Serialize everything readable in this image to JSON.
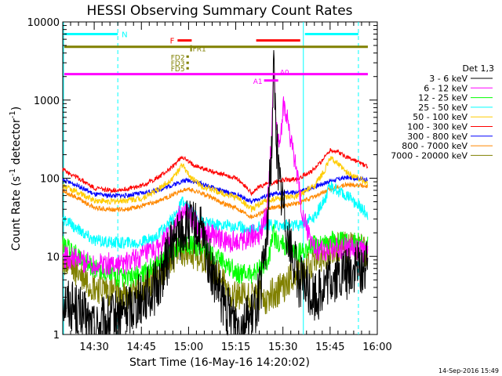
{
  "chart_data": {
    "type": "line",
    "title": "HESSI Observing Summary Count Rates",
    "xlabel": "Start Time (16-May-16 14:20:02)",
    "ylabel_main": "Count Rate (s",
    "ylabel_sup1": "-1",
    "ylabel_mid": " detector",
    "ylabel_sup2": "-1",
    "ylabel_end": ")",
    "detectors_label": "Det 1,3",
    "timestamp": "14-Sep-2016 15:49",
    "x_minutes_range": [
      0,
      100
    ],
    "ylim": [
      1,
      10000
    ],
    "y_scale": "log",
    "x_ticks": [
      {
        "m": 10,
        "label": "14:30"
      },
      {
        "m": 25,
        "label": "14:45"
      },
      {
        "m": 40,
        "label": "15:00"
      },
      {
        "m": 55,
        "label": "15:15"
      },
      {
        "m": 70,
        "label": "15:30"
      },
      {
        "m": 85,
        "label": "15:45"
      },
      {
        "m": 100,
        "label": "16:00"
      }
    ],
    "y_ticks": [
      {
        "v": 1,
        "label": "1"
      },
      {
        "v": 10,
        "label": "10"
      },
      {
        "v": 100,
        "label": "100"
      },
      {
        "v": 1000,
        "label": "1000"
      },
      {
        "v": 10000,
        "label": "10000"
      }
    ],
    "series": [
      {
        "name": "3 - 6 keV",
        "color": "#000000",
        "points": [
          [
            0,
            3
          ],
          [
            5,
            2
          ],
          [
            10,
            1.2
          ],
          [
            15,
            1.5
          ],
          [
            20,
            2
          ],
          [
            25,
            3
          ],
          [
            30,
            4
          ],
          [
            35,
            15
          ],
          [
            38,
            20
          ],
          [
            40,
            25
          ],
          [
            44,
            20
          ],
          [
            48,
            5
          ],
          [
            52,
            2
          ],
          [
            56,
            1.5
          ],
          [
            60,
            1.5
          ],
          [
            63,
            4
          ],
          [
            65,
            20
          ],
          [
            66.5,
            300
          ],
          [
            67,
            3000
          ],
          [
            68,
            300
          ],
          [
            69,
            80
          ],
          [
            70,
            50
          ],
          [
            72,
            15
          ],
          [
            75,
            5
          ],
          [
            80,
            3
          ],
          [
            85,
            5
          ],
          [
            90,
            6
          ],
          [
            94,
            7
          ],
          [
            97,
            7
          ]
        ]
      },
      {
        "name": "6 - 12 keV",
        "color": "#ff00ff",
        "points": [
          [
            0,
            10
          ],
          [
            5,
            9
          ],
          [
            10,
            8
          ],
          [
            15,
            8
          ],
          [
            20,
            8
          ],
          [
            25,
            10
          ],
          [
            30,
            12
          ],
          [
            35,
            20
          ],
          [
            38,
            40
          ],
          [
            40,
            35
          ],
          [
            44,
            22
          ],
          [
            48,
            18
          ],
          [
            52,
            15
          ],
          [
            56,
            16
          ],
          [
            60,
            18
          ],
          [
            63,
            20
          ],
          [
            65,
            40
          ],
          [
            66.5,
            400
          ],
          [
            67,
            2500
          ],
          [
            68,
            500
          ],
          [
            69,
            200
          ],
          [
            70,
            900
          ],
          [
            71,
            700
          ],
          [
            72,
            400
          ],
          [
            74,
            150
          ],
          [
            76,
            40
          ],
          [
            78,
            20
          ],
          [
            80,
            12
          ],
          [
            85,
            12
          ],
          [
            90,
            13
          ],
          [
            94,
            12
          ],
          [
            97,
            11
          ]
        ]
      },
      {
        "name": "12 - 25 keV",
        "color": "#00ff00",
        "points": [
          [
            0,
            14
          ],
          [
            5,
            10
          ],
          [
            10,
            7
          ],
          [
            15,
            6
          ],
          [
            20,
            5
          ],
          [
            25,
            6
          ],
          [
            30,
            8
          ],
          [
            35,
            12
          ],
          [
            38,
            14
          ],
          [
            40,
            14
          ],
          [
            44,
            13
          ],
          [
            48,
            10
          ],
          [
            52,
            8
          ],
          [
            56,
            6
          ],
          [
            60,
            6
          ],
          [
            63,
            7
          ],
          [
            65,
            8
          ],
          [
            66.5,
            15
          ],
          [
            67,
            20
          ],
          [
            68,
            15
          ],
          [
            70,
            14
          ],
          [
            72,
            12
          ],
          [
            75,
            11
          ],
          [
            80,
            14
          ],
          [
            85,
            16
          ],
          [
            90,
            15
          ],
          [
            94,
            15
          ],
          [
            97,
            14
          ]
        ]
      },
      {
        "name": "25 - 50 keV",
        "color": "#00ffff",
        "points": [
          [
            0,
            30
          ],
          [
            5,
            22
          ],
          [
            10,
            16
          ],
          [
            15,
            15
          ],
          [
            20,
            15
          ],
          [
            25,
            15
          ],
          [
            30,
            18
          ],
          [
            35,
            30
          ],
          [
            38,
            50
          ],
          [
            40,
            40
          ],
          [
            44,
            28
          ],
          [
            48,
            26
          ],
          [
            52,
            25
          ],
          [
            56,
            24
          ],
          [
            60,
            22
          ],
          [
            63,
            24
          ],
          [
            65,
            25
          ],
          [
            68,
            25
          ],
          [
            70,
            25
          ],
          [
            72,
            25
          ],
          [
            75,
            25
          ],
          [
            80,
            32
          ],
          [
            83,
            50
          ],
          [
            85,
            80
          ],
          [
            87,
            70
          ],
          [
            90,
            60
          ],
          [
            94,
            45
          ],
          [
            97,
            35
          ]
        ]
      },
      {
        "name": "50 - 100 keV",
        "color": "#ffcc00",
        "points": [
          [
            0,
            80
          ],
          [
            5,
            65
          ],
          [
            10,
            52
          ],
          [
            15,
            50
          ],
          [
            20,
            52
          ],
          [
            25,
            55
          ],
          [
            30,
            70
          ],
          [
            35,
            100
          ],
          [
            38,
            150
          ],
          [
            40,
            110
          ],
          [
            44,
            80
          ],
          [
            48,
            70
          ],
          [
            52,
            62
          ],
          [
            56,
            55
          ],
          [
            60,
            40
          ],
          [
            63,
            48
          ],
          [
            65,
            52
          ],
          [
            68,
            55
          ],
          [
            70,
            55
          ],
          [
            72,
            56
          ],
          [
            75,
            60
          ],
          [
            80,
            80
          ],
          [
            83,
            120
          ],
          [
            85,
            180
          ],
          [
            87,
            160
          ],
          [
            90,
            120
          ],
          [
            94,
            100
          ],
          [
            97,
            85
          ]
        ]
      },
      {
        "name": "100 - 300 keV",
        "color": "#ff0000",
        "points": [
          [
            0,
            130
          ],
          [
            5,
            100
          ],
          [
            10,
            75
          ],
          [
            15,
            70
          ],
          [
            20,
            72
          ],
          [
            25,
            80
          ],
          [
            30,
            100
          ],
          [
            35,
            140
          ],
          [
            38,
            190
          ],
          [
            40,
            160
          ],
          [
            44,
            135
          ],
          [
            48,
            120
          ],
          [
            52,
            110
          ],
          [
            56,
            95
          ],
          [
            60,
            65
          ],
          [
            63,
            80
          ],
          [
            65,
            85
          ],
          [
            68,
            90
          ],
          [
            70,
            95
          ],
          [
            72,
            95
          ],
          [
            75,
            100
          ],
          [
            80,
            130
          ],
          [
            83,
            180
          ],
          [
            85,
            230
          ],
          [
            87,
            220
          ],
          [
            90,
            190
          ],
          [
            94,
            160
          ],
          [
            97,
            140
          ]
        ]
      },
      {
        "name": "300 - 800 keV",
        "color": "#0000ff",
        "points": [
          [
            0,
            95
          ],
          [
            5,
            80
          ],
          [
            10,
            62
          ],
          [
            15,
            60
          ],
          [
            20,
            60
          ],
          [
            25,
            64
          ],
          [
            30,
            70
          ],
          [
            35,
            82
          ],
          [
            38,
            92
          ],
          [
            40,
            95
          ],
          [
            44,
            85
          ],
          [
            48,
            75
          ],
          [
            52,
            66
          ],
          [
            56,
            60
          ],
          [
            60,
            50
          ],
          [
            63,
            56
          ],
          [
            65,
            60
          ],
          [
            68,
            63
          ],
          [
            70,
            64
          ],
          [
            72,
            65
          ],
          [
            75,
            66
          ],
          [
            80,
            78
          ],
          [
            85,
            92
          ],
          [
            90,
            102
          ],
          [
            94,
            100
          ],
          [
            97,
            95
          ]
        ]
      },
      {
        "name": "800 - 7000 keV",
        "color": "#ff8800",
        "points": [
          [
            0,
            70
          ],
          [
            5,
            55
          ],
          [
            10,
            42
          ],
          [
            15,
            40
          ],
          [
            20,
            40
          ],
          [
            25,
            44
          ],
          [
            30,
            50
          ],
          [
            35,
            62
          ],
          [
            38,
            70
          ],
          [
            40,
            72
          ],
          [
            44,
            65
          ],
          [
            48,
            55
          ],
          [
            52,
            46
          ],
          [
            56,
            40
          ],
          [
            60,
            32
          ],
          [
            63,
            36
          ],
          [
            65,
            40
          ],
          [
            68,
            43
          ],
          [
            70,
            44
          ],
          [
            72,
            46
          ],
          [
            75,
            48
          ],
          [
            80,
            58
          ],
          [
            85,
            72
          ],
          [
            90,
            82
          ],
          [
            94,
            82
          ],
          [
            97,
            78
          ]
        ]
      },
      {
        "name": "7000 - 20000 keV",
        "color": "#808000",
        "points": [
          [
            0,
            9
          ],
          [
            5,
            6
          ],
          [
            10,
            4
          ],
          [
            15,
            3.5
          ],
          [
            20,
            3
          ],
          [
            25,
            4
          ],
          [
            30,
            6
          ],
          [
            35,
            10
          ],
          [
            38,
            12
          ],
          [
            40,
            12
          ],
          [
            44,
            10
          ],
          [
            48,
            7
          ],
          [
            52,
            4
          ],
          [
            56,
            3
          ],
          [
            60,
            3
          ],
          [
            63,
            3
          ],
          [
            65,
            3
          ],
          [
            67,
            3.5
          ],
          [
            70,
            4
          ],
          [
            72,
            5
          ],
          [
            75,
            6
          ],
          [
            80,
            9
          ],
          [
            85,
            12
          ],
          [
            90,
            13
          ],
          [
            94,
            13
          ],
          [
            97,
            12
          ]
        ]
      }
    ],
    "annotations": {
      "night_label": "N",
      "flare_label": "F",
      "fr_label": "FR1",
      "fd_labels": [
        "FD2",
        "FD3",
        "FD5"
      ],
      "attenuator_labels": [
        "A1",
        "A0"
      ],
      "night_intervals": [
        [
          0,
          17.5
        ],
        [
          76.5,
          94
        ]
      ],
      "flare_intervals": [
        [
          36.5,
          41
        ],
        [
          61.5,
          75.5
        ]
      ],
      "saa_or_data_bands": [
        [
          0,
          97
        ]
      ],
      "attenuator_intervals": [
        [
          64,
          68.5
        ]
      ],
      "vertical_lines_solid": [
        0,
        76.5
      ],
      "vertical_lines_dashed": [
        17.5,
        94
      ]
    }
  }
}
